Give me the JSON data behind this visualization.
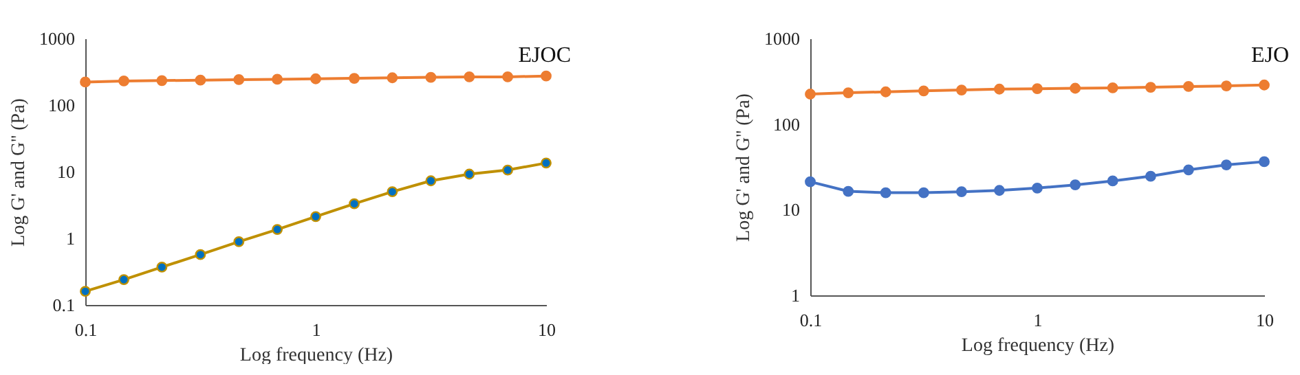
{
  "chart_data": [
    {
      "type": "line",
      "xlabel": "Log frequency (Hz)",
      "ylabel": "Log G' and G'' (Pa)",
      "annotations": [
        "EJOC"
      ],
      "log": "xy",
      "marker": "circle",
      "line_style": "solid",
      "xlim": [
        0.1,
        10
      ],
      "xticks": [
        0.1,
        1,
        10
      ],
      "ylim": [
        0.1,
        1000
      ],
      "yticks": [
        0.1,
        1,
        10,
        100,
        1000
      ],
      "x": [
        0.1,
        0.147,
        0.215,
        0.316,
        0.464,
        0.681,
        1,
        1.47,
        2.15,
        3.16,
        4.64,
        6.81,
        10
      ],
      "series": [
        {
          "color": "#ed7d31",
          "values": [
            222,
            230,
            233,
            237,
            241,
            244,
            248,
            252,
            257,
            261,
            265,
            265,
            273
          ]
        },
        {
          "color": "#bf9000",
          "colors": [
            "#0070c0",
            "#0070c0",
            "#0070c0",
            "#0070c0",
            "#0070c0",
            "#0070c0",
            "#0070c0",
            "#0070c0",
            "#0070c0",
            "#0070c0",
            "#0070c0",
            "#0070c0",
            "#0070c0"
          ],
          "values": [
            0.16,
            0.24,
            0.37,
            0.57,
            0.89,
            1.36,
            2.12,
            3.3,
            5,
            7.3,
            9.2,
            10.6,
            13.5
          ]
        }
      ]
    },
    {
      "type": "line",
      "xlabel": "Log frequency (Hz)",
      "ylabel": "Log G' and G'' (Pa)",
      "annotations": [
        "EJO"
      ],
      "log": "xy",
      "marker": "circle",
      "line_style": "solid",
      "xlim": [
        0.1,
        10
      ],
      "xticks": [
        0.1,
        1,
        10
      ],
      "ylim": [
        1,
        1000
      ],
      "yticks": [
        1,
        10,
        100,
        1000
      ],
      "x": [
        0.1,
        0.147,
        0.215,
        0.316,
        0.464,
        0.681,
        1,
        1.47,
        2.15,
        3.16,
        4.64,
        6.81,
        10
      ],
      "series": [
        {
          "color": "#ed7d31",
          "values": [
            224,
            232,
            238,
            244,
            250,
            256,
            259,
            262,
            265,
            269,
            275,
            279,
            286
          ]
        },
        {
          "color": "#4472c4",
          "values": [
            21.2,
            16.4,
            15.8,
            15.8,
            16.2,
            16.8,
            17.9,
            19.5,
            21.7,
            24.6,
            29.2,
            33.4,
            36.4
          ]
        }
      ]
    }
  ]
}
